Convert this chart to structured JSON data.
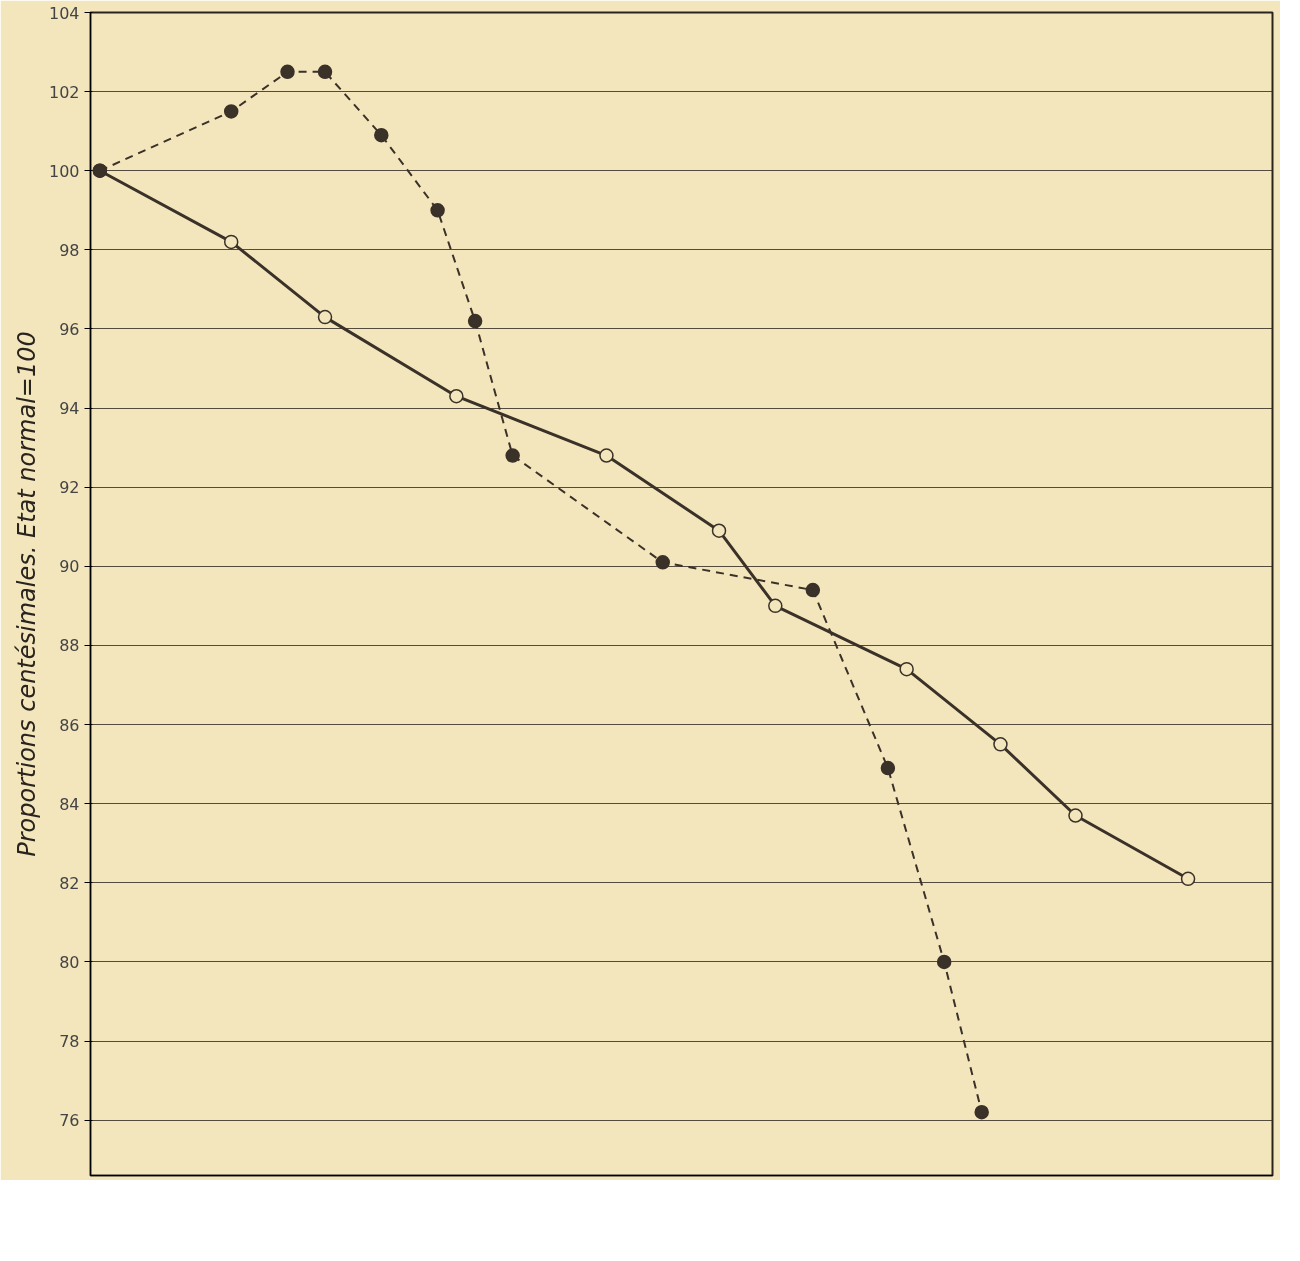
{
  "chart_data": {
    "type": "line",
    "ylabel": "Proportions centésimales. Etat normal=100",
    "categories": [
      null,
      null,
      null,
      null,
      null,
      null,
      null,
      null,
      null,
      null,
      null,
      null,
      null,
      null,
      null,
      null,
      null,
      null,
      null,
      null,
      null,
      null,
      null,
      null,
      null,
      null,
      null,
      null,
      null,
      null,
      null,
      null,
      null,
      null,
      null,
      null,
      null,
      null,
      null,
      null,
      null,
      null,
      null,
      null,
      null,
      null,
      null,
      null,
      null,
      null,
      null,
      null,
      null,
      null,
      null,
      null,
      null,
      null,
      null,
      null,
      null,
      null,
      null
    ],
    "ylim": [
      74.6,
      104
    ],
    "yticks": [
      76,
      78,
      80,
      82,
      84,
      86,
      88,
      90,
      92,
      94,
      96,
      98,
      100,
      102,
      104
    ],
    "tick_labels": "y",
    "grid": "y",
    "marker": "circle",
    "series": [
      {
        "color": "#3a3128",
        "line_style": "solid",
        "values": [
          100.0,
          null,
          null,
          null,
          null,
          null,
          null,
          98.2,
          null,
          null,
          null,
          null,
          96.3,
          null,
          null,
          null,
          null,
          null,
          null,
          94.3,
          null,
          null,
          null,
          null,
          null,
          null,
          null,
          92.8,
          null,
          null,
          null,
          null,
          null,
          90.9,
          null,
          null,
          89.0,
          null,
          null,
          null,
          null,
          null,
          null,
          87.4,
          null,
          null,
          null,
          null,
          85.5,
          null,
          null,
          null,
          83.7,
          null,
          null,
          null,
          null,
          null,
          82.1,
          null,
          null,
          null,
          null
        ]
      },
      {
        "color": "#3a3128",
        "line_style": "dashed",
        "values": [
          100.0,
          null,
          null,
          null,
          null,
          null,
          null,
          101.5,
          null,
          null,
          102.5,
          null,
          102.5,
          null,
          null,
          100.9,
          null,
          null,
          99.0,
          null,
          96.2,
          null,
          92.8,
          null,
          null,
          null,
          null,
          null,
          null,
          null,
          90.1,
          null,
          null,
          null,
          null,
          null,
          null,
          null,
          89.4,
          null,
          null,
          null,
          84.9,
          null,
          null,
          80.0,
          null,
          76.2,
          null,
          null,
          null,
          null,
          null,
          null,
          null,
          null,
          null,
          null,
          null,
          null,
          null,
          null,
          null
        ]
      }
    ]
  }
}
